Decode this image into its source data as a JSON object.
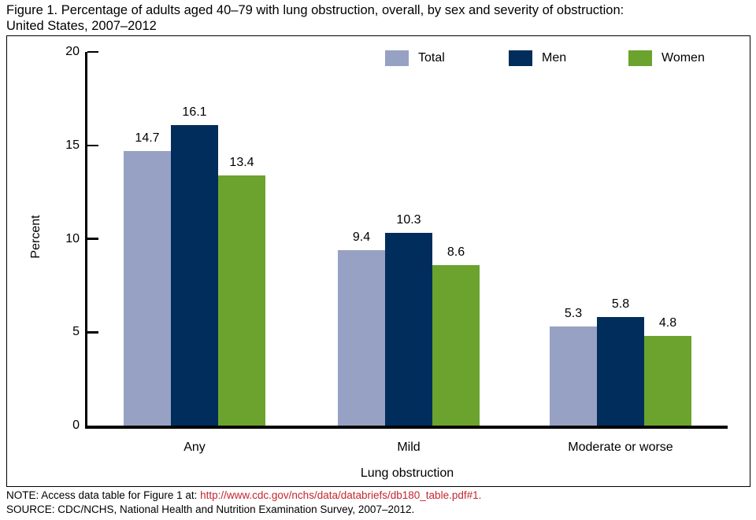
{
  "figure": {
    "title": "Figure 1. Percentage of adults aged 40–79 with lung obstruction, overall, by sex and severity of obstruction:\nUnited States, 2007–2012"
  },
  "chart_data": {
    "type": "bar",
    "categories": [
      "Any",
      "Mild",
      "Moderate or worse"
    ],
    "series": [
      {
        "name": "Total",
        "color": "#97a1c4",
        "values": [
          14.7,
          9.4,
          5.3
        ]
      },
      {
        "name": "Men",
        "color": "#002d5b",
        "values": [
          16.1,
          10.3,
          5.8
        ]
      },
      {
        "name": "Women",
        "color": "#6ba32e",
        "values": [
          13.4,
          8.6,
          4.8
        ]
      }
    ],
    "xlabel": "Lung obstruction",
    "ylabel": "Percent",
    "ylim": [
      0,
      20
    ],
    "yticks": [
      0,
      5,
      10,
      15,
      20
    ],
    "legend_position": "top-inside",
    "grid": false,
    "bar_value_labels": true
  },
  "footer": {
    "note_prefix": "NOTE: Access data table for Figure 1 at: ",
    "note_link": "http://www.cdc.gov/nchs/data/databriefs/db180_table.pdf#1.",
    "source": "SOURCE: CDC/NCHS, National Health and Nutrition Examination Survey, 2007–2012.",
    "link_color": "#c5262e"
  }
}
